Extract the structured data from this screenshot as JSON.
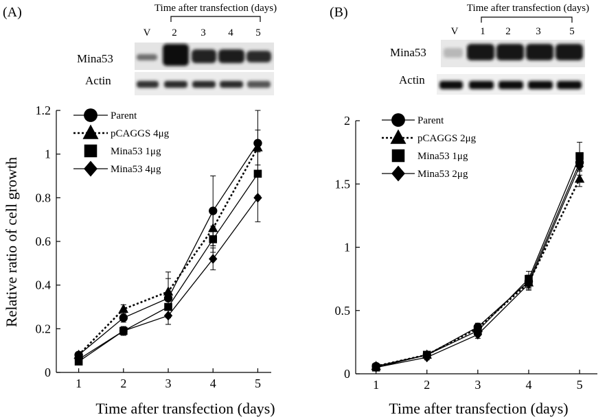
{
  "panels": [
    {
      "label": "(A)",
      "blot": {
        "header": "Time after transfection (days)",
        "lanes": [
          "V",
          "2",
          "3",
          "4",
          "5"
        ],
        "rows": [
          "Mina53",
          "Actin"
        ]
      }
    },
    {
      "label": "(B)",
      "blot": {
        "header": "Time after transfection (days)",
        "lanes": [
          "V",
          "1",
          "2",
          "3",
          "5"
        ],
        "rows": [
          "Mina53",
          "Actin"
        ]
      }
    }
  ],
  "chart_data": [
    {
      "type": "line",
      "xlabel": "Time after transfection (days)",
      "ylabel": "Relative ratio of cell growth",
      "x": [
        1,
        2,
        3,
        4,
        5
      ],
      "xlim": [
        0.5,
        5.3
      ],
      "ylim": [
        0,
        1.2
      ],
      "yticks": [
        "0",
        "0.2",
        "0.4",
        "0.6",
        "0.8",
        "1",
        "1.2"
      ],
      "xticks": [
        "1",
        "2",
        "3",
        "4",
        "5"
      ],
      "legend_position": "top-left",
      "series": [
        {
          "name": "Parent",
          "marker": "circle",
          "dash": "solid",
          "values": [
            0.08,
            0.25,
            0.34,
            0.74,
            1.05
          ],
          "err": [
            0.01,
            0.02,
            0.12,
            0.16,
            0.15
          ]
        },
        {
          "name": "pCAGGS 4μg",
          "marker": "triangle",
          "dash": "dotted",
          "values": [
            0.08,
            0.29,
            0.37,
            0.66,
            1.03
          ],
          "err": [
            0.01,
            0.02,
            0.06,
            0.08,
            0.08
          ]
        },
        {
          "name": "Mina53 1μg",
          "marker": "square",
          "dash": "solid",
          "values": [
            0.05,
            0.19,
            0.3,
            0.61,
            0.91
          ],
          "err": [
            0.01,
            0.02,
            0.05,
            0.06,
            0.1
          ]
        },
        {
          "name": "Mina53 4μg",
          "marker": "diamond",
          "dash": "solid",
          "values": [
            0.06,
            0.19,
            0.26,
            0.52,
            0.8
          ],
          "err": [
            0.01,
            0.02,
            0.04,
            0.05,
            0.11
          ]
        }
      ]
    },
    {
      "type": "line",
      "xlabel": "Time after transfection (days)",
      "ylabel": "",
      "x": [
        1,
        2,
        3,
        4,
        5
      ],
      "xlim": [
        0.6,
        5.35
      ],
      "ylim": [
        0,
        2
      ],
      "yticks": [
        "0",
        "0.5",
        "1",
        "1.5",
        "2"
      ],
      "xticks": [
        "1",
        "2",
        "3",
        "4",
        "5"
      ],
      "legend_position": "top-left",
      "series": [
        {
          "name": "Parent",
          "marker": "circle",
          "dash": "solid",
          "values": [
            0.06,
            0.15,
            0.37,
            0.73,
            1.67
          ],
          "err": [
            0.01,
            0.02,
            0.03,
            0.05,
            0.06
          ]
        },
        {
          "name": "pCAGGS 2μg",
          "marker": "triangle",
          "dash": "dotted",
          "values": [
            0.06,
            0.15,
            0.36,
            0.72,
            1.54
          ],
          "err": [
            0.01,
            0.02,
            0.03,
            0.05,
            0.06
          ]
        },
        {
          "name": "Mina53 1μg",
          "marker": "square",
          "dash": "solid",
          "values": [
            0.05,
            0.15,
            0.34,
            0.75,
            1.72
          ],
          "err": [
            0.01,
            0.02,
            0.03,
            0.06,
            0.11
          ]
        },
        {
          "name": "Mina53 2μg",
          "marker": "diamond",
          "dash": "solid",
          "values": [
            0.05,
            0.13,
            0.31,
            0.71,
            1.64
          ],
          "err": [
            0.01,
            0.02,
            0.03,
            0.05,
            0.07
          ]
        }
      ]
    }
  ]
}
